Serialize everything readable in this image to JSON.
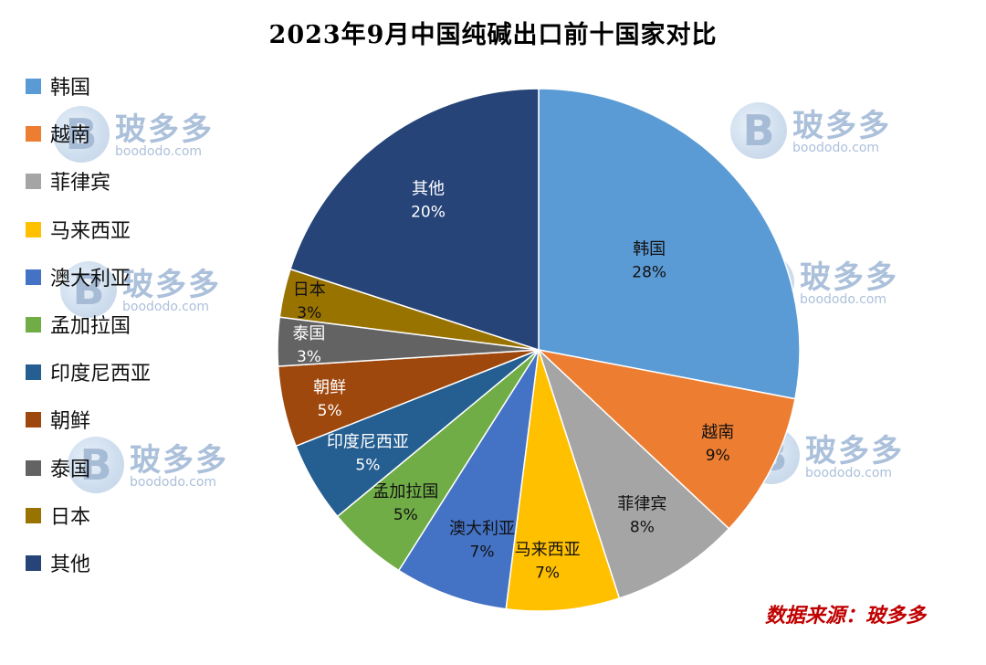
{
  "chart_data": {
    "type": "pie",
    "title": "2023年9月中国纯碱出口前十国家对比",
    "categories": [
      "韩国",
      "越南",
      "菲律宾",
      "马来西亚",
      "澳大利亚",
      "孟加拉国",
      "印度尼西亚",
      "朝鲜",
      "泰国",
      "日本",
      "其他"
    ],
    "values": [
      28,
      9,
      8,
      7,
      7,
      5,
      5,
      5,
      3,
      3,
      20
    ],
    "value_labels": [
      "28%",
      "9%",
      "8%",
      "7%",
      "7%",
      "5%",
      "5%",
      "5%",
      "3%",
      "3%",
      "20%"
    ],
    "colors": [
      "#5b9bd5",
      "#ed7d31",
      "#a5a5a5",
      "#ffc000",
      "#4472c4",
      "#70ad47",
      "#255e91",
      "#9e480e",
      "#636363",
      "#997300",
      "#264478"
    ],
    "legend_position": "left",
    "start_angle": "top, clockwise"
  },
  "source": "数据来源：玻多多",
  "watermark": {
    "brand": "玻多多",
    "url": "boododo.com",
    "logo_letter": "B"
  }
}
